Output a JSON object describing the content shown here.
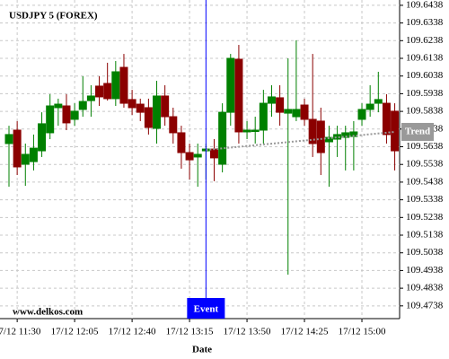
{
  "chart_data": {
    "type": "candlestick",
    "title": "USDJPY 5 (FOREX)",
    "watermark": "www.delkos.com",
    "x_label": "Date",
    "categories": [
      null,
      "17/12 11:30",
      null,
      null,
      null,
      null,
      null,
      null,
      "17/12 12:05",
      null,
      null,
      null,
      null,
      null,
      null,
      "17/12 12:40",
      null,
      null,
      null,
      null,
      null,
      null,
      "17/12 13:15",
      null,
      null,
      null,
      null,
      null,
      null,
      "17/12 13:50",
      null,
      null,
      null,
      null,
      null,
      null,
      "17/12 14:25",
      null,
      null,
      null,
      null,
      null,
      null,
      "17/12 15:00",
      null,
      null,
      null,
      null
    ],
    "open": [
      109.5656,
      109.5732,
      109.5539,
      109.5554,
      109.5615,
      109.5717,
      109.5859,
      109.5869,
      109.5793,
      109.5849,
      109.5899,
      109.5981,
      109.5996,
      109.591,
      109.6087,
      109.5905,
      109.5879,
      109.5859,
      109.5742,
      109.5925,
      109.5808,
      109.5717,
      109.5605,
      109.558,
      109.5615,
      109.5625,
      109.5539,
      109.5833,
      109.6133,
      109.5722,
      109.5727,
      109.5732,
      109.5884,
      109.5915,
      109.5828,
      109.5808,
      109.5874,
      109.5793,
      109.5783,
      109.5666,
      109.5681,
      109.5691,
      109.5696,
      109.5793,
      109.5849,
      109.5884,
      109.5884,
      109.5839
    ],
    "high": [
      109.5757,
      109.5783,
      109.5656,
      109.5707,
      109.5833,
      109.5935,
      109.591,
      109.5935,
      109.5884,
      109.6037,
      109.5986,
      109.6037,
      109.6113,
      109.6123,
      109.6163,
      109.596,
      109.591,
      109.591,
      109.6011,
      109.5986,
      109.5859,
      109.5757,
      109.5656,
      109.5656,
      109.5656,
      109.5681,
      109.5884,
      109.6163,
      109.6214,
      109.5783,
      109.5808,
      109.596,
      109.5986,
      109.5986,
      109.6138,
      109.624,
      109.591,
      109.6163,
      109.5859,
      109.5757,
      109.5757,
      109.5757,
      109.5783,
      109.5884,
      109.5986,
      109.6062,
      109.5935,
      109.5884
    ],
    "low": [
      109.5412,
      109.5478,
      109.5417,
      109.5504,
      109.558,
      109.5681,
      109.5757,
      109.5732,
      109.5757,
      109.5808,
      109.5808,
      109.5869,
      109.5899,
      109.5869,
      109.5859,
      109.5818,
      109.5783,
      109.5707,
      109.5656,
      109.5757,
      109.5656,
      109.5514,
      109.5453,
      109.5412,
      109.5453,
      109.5443,
      109.5493,
      109.5757,
      109.5656,
      109.5681,
      109.5656,
      109.5656,
      109.5808,
      109.5757,
      109.4915,
      109.5783,
      109.5757,
      109.558,
      109.5478,
      109.5412,
      109.558,
      109.5504,
      109.5504,
      109.5757,
      109.5808,
      109.5833,
      109.5656,
      109.5504
    ],
    "close": [
      109.5707,
      109.5524,
      109.5595,
      109.563,
      109.5768,
      109.5869,
      109.5879,
      109.5773,
      109.5839,
      109.5894,
      109.5925,
      109.592,
      109.591,
      109.6062,
      109.5884,
      109.5859,
      109.5833,
      109.5747,
      109.5925,
      109.5808,
      109.5717,
      109.5605,
      109.5564,
      109.5595,
      109.5625,
      109.5575,
      109.5833,
      109.6138,
      109.5722,
      109.5732,
      109.5732,
      109.5884,
      109.592,
      109.5833,
      109.5849,
      109.5849,
      109.5793,
      109.5656,
      109.5605,
      109.5691,
      109.5707,
      109.5717,
      109.5722,
      109.5849,
      109.5879,
      109.5905,
      109.5707,
      109.5615
    ],
    "up_color": "#008000",
    "down_color": "#8b0000",
    "ylim": [
      109.4666,
      109.6468
    ],
    "yticks": [
      109.4738,
      109.4838,
      109.4938,
      109.5038,
      109.5138,
      109.5238,
      109.5338,
      109.5438,
      109.5538,
      109.5638,
      109.5738,
      109.5838,
      109.5938,
      109.6038,
      109.6138,
      109.6238,
      109.6338,
      109.6438
    ],
    "grid": true,
    "event": {
      "label": "Event",
      "index": 24,
      "color": "#0000ff"
    },
    "trend": {
      "label": "Trend",
      "x": [
        24,
        47
      ],
      "values": [
        109.562,
        109.5722
      ],
      "color": "#999999"
    }
  }
}
